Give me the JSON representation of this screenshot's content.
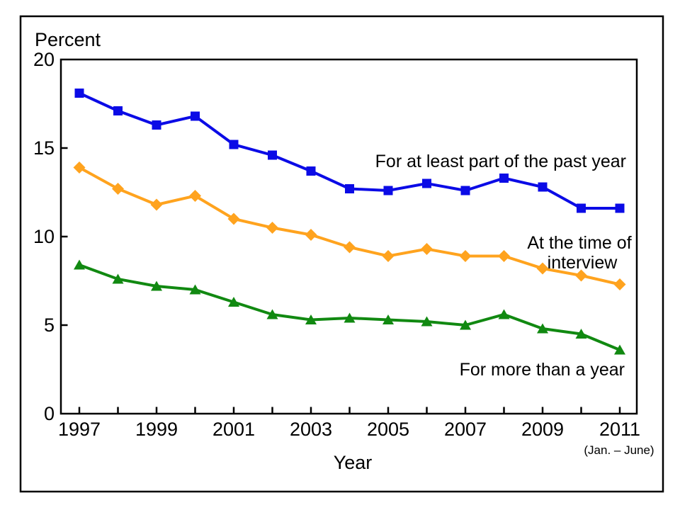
{
  "chart_data": {
    "type": "line",
    "title": "",
    "ylabel": "Percent",
    "xlabel": "Year",
    "x_sublabel": "(Jan. – June)",
    "x": [
      1997,
      1998,
      1999,
      2000,
      2001,
      2002,
      2003,
      2004,
      2005,
      2006,
      2007,
      2008,
      2009,
      2010,
      2011
    ],
    "xtick_labels": [
      "1997",
      "1999",
      "2001",
      "2003",
      "2005",
      "2007",
      "2009",
      "2011"
    ],
    "ytick_labels": [
      "20",
      "15",
      "10",
      "5",
      "0"
    ],
    "ylim": [
      0,
      20
    ],
    "yticks": [
      0,
      5,
      10,
      15,
      20
    ],
    "y_minor_tick_values": [
      5,
      10,
      15
    ],
    "grid": false,
    "legend_position": "inline-labels",
    "series": [
      {
        "name": "For at least part of the past year",
        "label_lines": [
          "For at least part of the past year"
        ],
        "color": "#0b0be6",
        "marker": "square",
        "values": [
          18.1,
          17.1,
          16.3,
          16.8,
          15.2,
          14.6,
          13.7,
          12.7,
          12.6,
          13.0,
          12.6,
          13.3,
          12.8,
          11.6,
          11.6
        ]
      },
      {
        "name": "At the time of interview",
        "label_lines": [
          "At the time of",
          "interview"
        ],
        "color": "#ffa31e",
        "marker": "diamond",
        "values": [
          13.9,
          12.7,
          11.8,
          12.3,
          11.0,
          10.5,
          10.1,
          9.4,
          8.9,
          9.3,
          8.9,
          8.9,
          8.2,
          7.8,
          7.3
        ]
      },
      {
        "name": "For more than a year",
        "label_lines": [
          "For more than a year"
        ],
        "color": "#118911",
        "marker": "triangle",
        "values": [
          8.4,
          7.6,
          7.2,
          7.0,
          6.3,
          5.6,
          5.3,
          5.4,
          5.3,
          5.2,
          5.0,
          5.6,
          4.8,
          4.5,
          3.6
        ]
      }
    ]
  }
}
